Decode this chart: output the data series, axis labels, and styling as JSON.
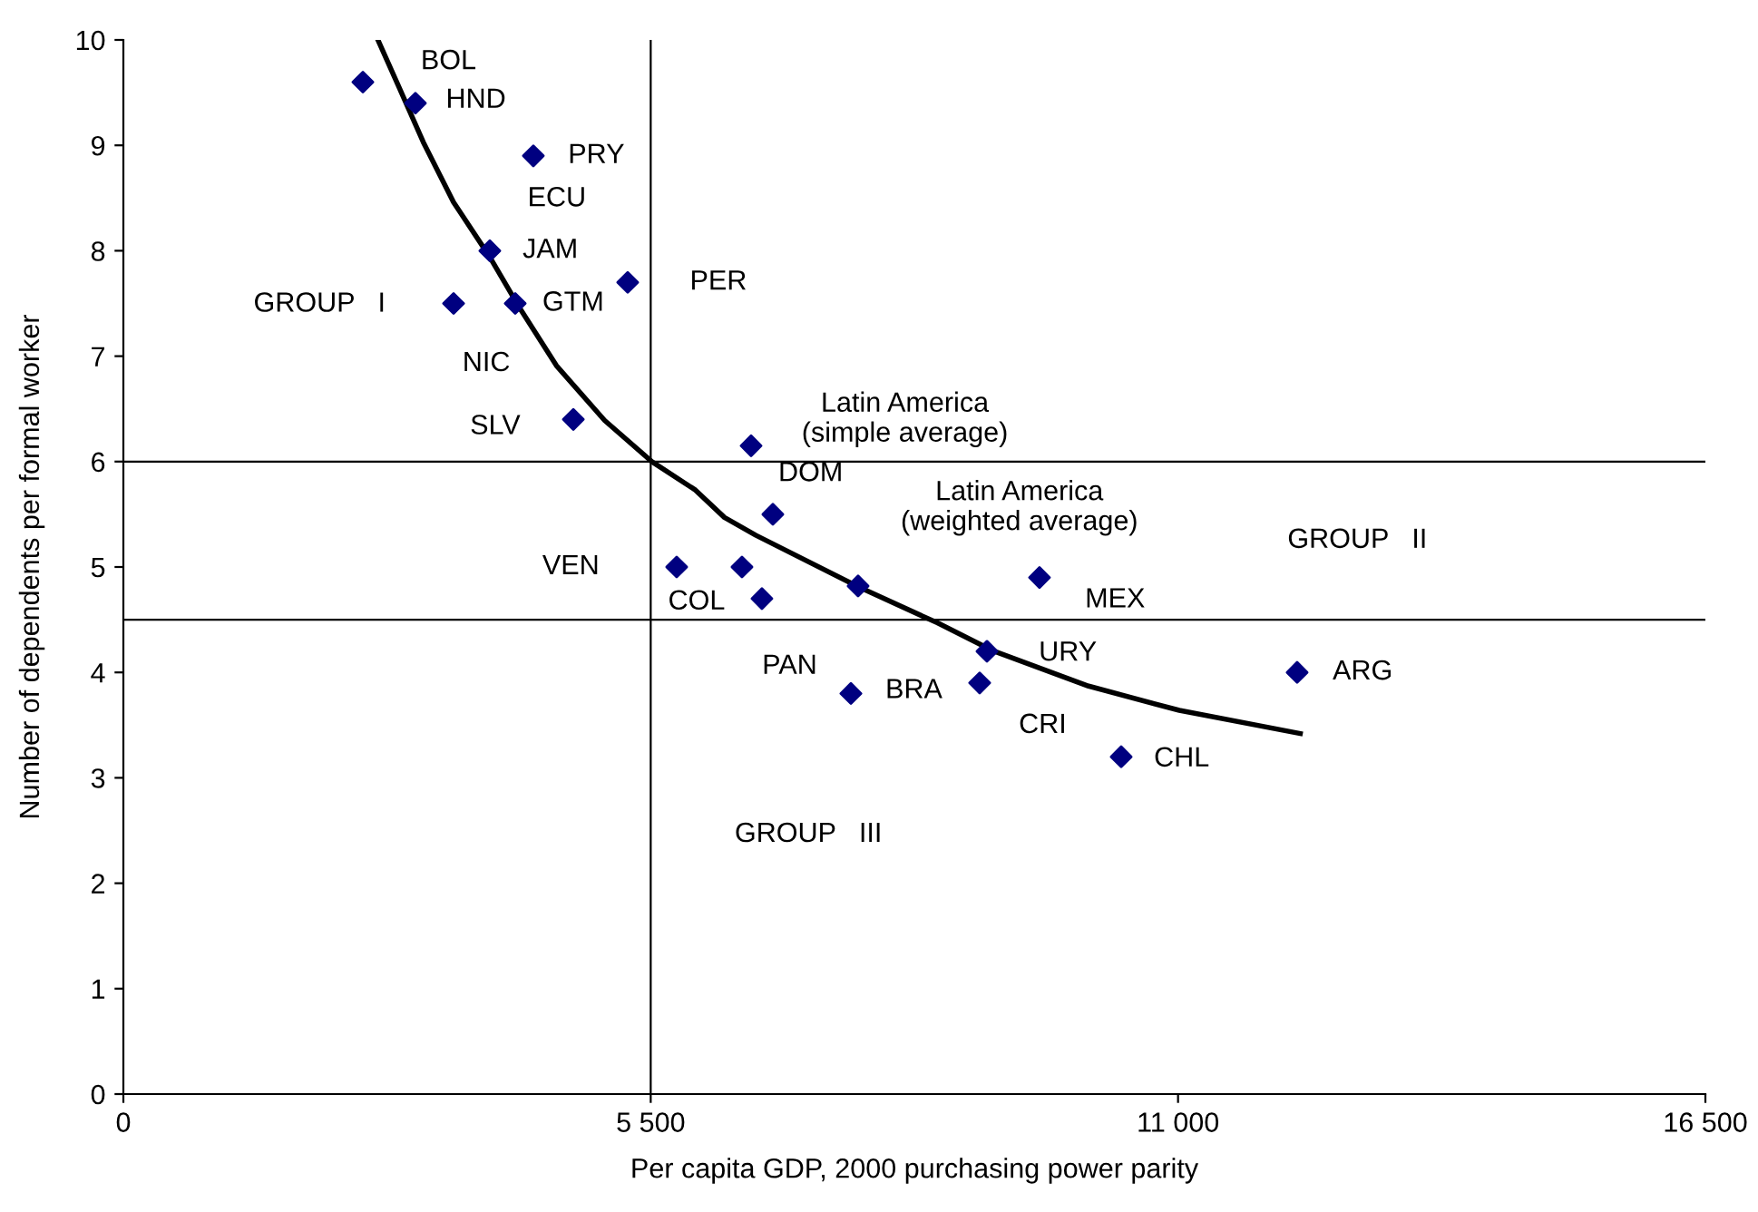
{
  "chart_data": {
    "type": "scatter",
    "xlabel": "Per capita GDP, 2000 purchasing power parity",
    "ylabel": "Number of dependents per formal worker",
    "xlim": [
      0,
      16500
    ],
    "ylim": [
      0,
      10
    ],
    "xticks": [
      0,
      {
        "value": 5500,
        "label": "5 500"
      },
      {
        "value": 11000,
        "label": "11 000"
      },
      {
        "value": 16500,
        "label": "16 500"
      }
    ],
    "yticks": [
      0,
      1,
      2,
      3,
      4,
      5,
      6,
      7,
      8,
      9,
      10
    ],
    "grid": false,
    "legend": false,
    "marker": "diamond",
    "series": [
      {
        "color": "#000080",
        "x": [
          2498,
          3046,
          4276,
          3822,
          3444,
          4087,
          5260,
          4693,
          6547,
          6774,
          5771,
          6452,
          6660,
          7663,
          9555,
          9007,
          7588,
          8931,
          10407,
          12242
        ],
        "values": [
          9.6,
          9.4,
          8.9,
          8.0,
          7.5,
          7.5,
          7.7,
          6.4,
          6.15,
          5.5,
          5.0,
          5.0,
          4.7,
          4.82,
          4.9,
          4.2,
          3.8,
          3.9,
          3.2,
          4.0
        ]
      },
      {
        "type": "line",
        "color": "#000000",
        "marker": "none",
        "x": [
          2655,
          2876,
          3128,
          3444,
          3822,
          4138,
          4517,
          5020,
          5512,
          5966,
          6269,
          6598,
          7669,
          8490,
          9058,
          10067,
          11013,
          12275
        ],
        "values": [
          10.0,
          9.55,
          9.03,
          8.46,
          7.94,
          7.45,
          6.91,
          6.39,
          6.0,
          5.73,
          5.47,
          5.3,
          4.81,
          4.47,
          4.21,
          3.87,
          3.64,
          3.42
        ]
      }
    ],
    "ref_lines": [
      {
        "axis": "x",
        "value": 5500,
        "color": "#000000"
      },
      {
        "axis": "y",
        "value": 6,
        "color": "#000000"
      },
      {
        "axis": "y",
        "value": 4.5,
        "color": "#000000"
      }
    ],
    "annotations": [
      {
        "text": "BOL",
        "x": 2498,
        "y": 9.6
      },
      {
        "text": "HND",
        "x": 3046,
        "y": 9.4
      },
      {
        "text": "PRY",
        "x": 4276,
        "y": 8.9
      },
      {
        "text": "JAM",
        "x": 3822,
        "y": 8.0
      },
      {
        "text": "NIC",
        "x": 3444,
        "y": 7.5
      },
      {
        "text": "GTM",
        "x": 4087,
        "y": 7.5
      },
      {
        "text": "PER",
        "x": 5260,
        "y": 7.7
      },
      {
        "text": "SLV",
        "x": 4693,
        "y": 6.4
      },
      {
        "text": "DOM",
        "x": 6774,
        "y": 5.5
      },
      {
        "text": "Latin America\n(weighted average)",
        "x": 7663,
        "y": 4.82
      },
      {
        "text": "VEN",
        "x": 5771,
        "y": 5.0
      },
      {
        "text": "COL",
        "x": 6452,
        "y": 5.0
      },
      {
        "text": "MEX",
        "x": 9555,
        "y": 4.9
      },
      {
        "text": "PAN",
        "x": 6660,
        "y": 4.7
      },
      {
        "text": "ARG",
        "x": 12242,
        "y": 4.0
      },
      {
        "text": "BRA",
        "x": 7588,
        "y": 3.8
      },
      {
        "text": "CRI",
        "x": 8931,
        "y": 3.9
      },
      {
        "text": "CHL",
        "x": 10407,
        "y": 3.2
      },
      "ECU",
      "GROUP   I",
      "GROUP   II",
      "GROUP   III",
      "Latin America\n(simple average)",
      "URY"
    ]
  }
}
